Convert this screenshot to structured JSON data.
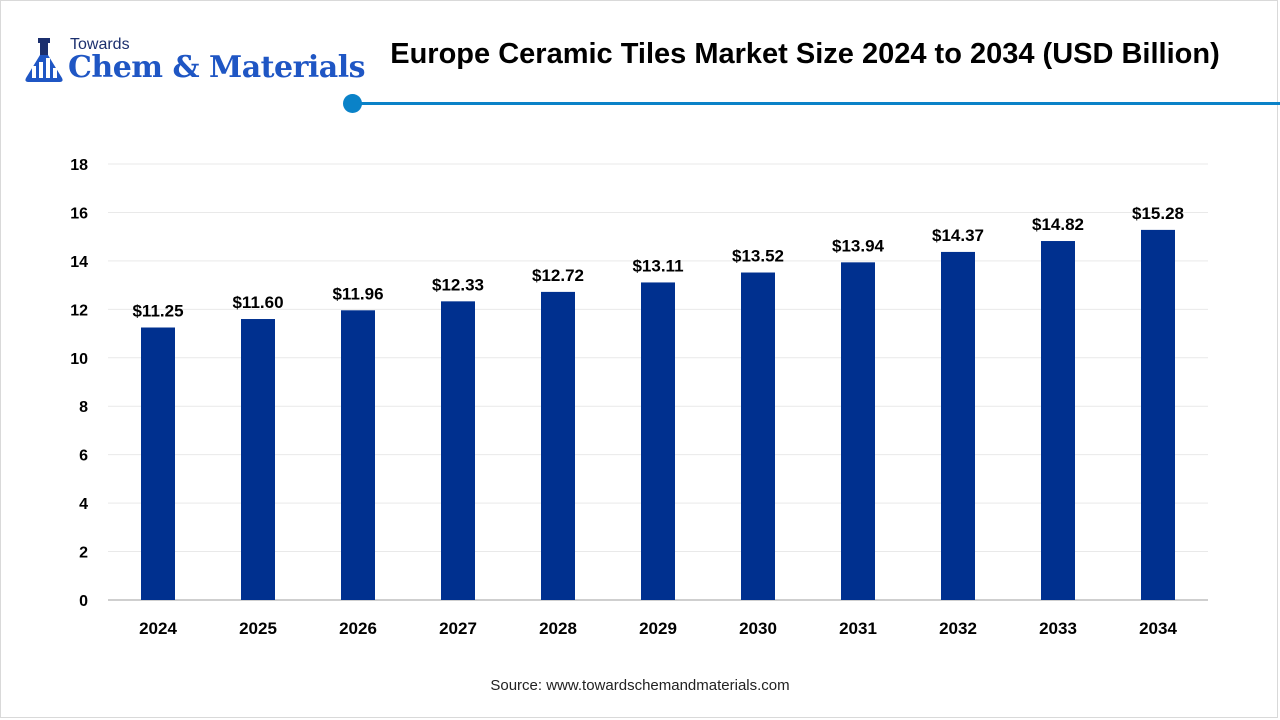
{
  "brand": {
    "line1": "Towards",
    "line2": "Chem & Materials"
  },
  "colors": {
    "bar": "#00308f",
    "accent": "#0a82c8",
    "grid": "#e9e9e9",
    "axis": "#bfbfbf"
  },
  "chart_data": {
    "type": "bar",
    "title": "Europe Ceramic Tiles Market Size 2024 to 2034 (USD Billion)",
    "categories": [
      "2024",
      "2025",
      "2026",
      "2027",
      "2028",
      "2029",
      "2030",
      "2031",
      "2032",
      "2033",
      "2034"
    ],
    "values": [
      11.25,
      11.6,
      11.96,
      12.33,
      12.72,
      13.11,
      13.52,
      13.94,
      14.37,
      14.82,
      15.28
    ],
    "data_labels": [
      "$11.25",
      "$11.60",
      "$11.96",
      "$12.33",
      "$12.72",
      "$13.11",
      "$13.52",
      "$13.94",
      "$14.37",
      "$14.82",
      "$15.28"
    ],
    "y_ticks": [
      0,
      2,
      4,
      6,
      8,
      10,
      12,
      14,
      16,
      18
    ],
    "ylim": [
      0,
      18
    ],
    "grid": true,
    "legend": "none"
  },
  "source": "Source: www.towardschemandmaterials.com"
}
